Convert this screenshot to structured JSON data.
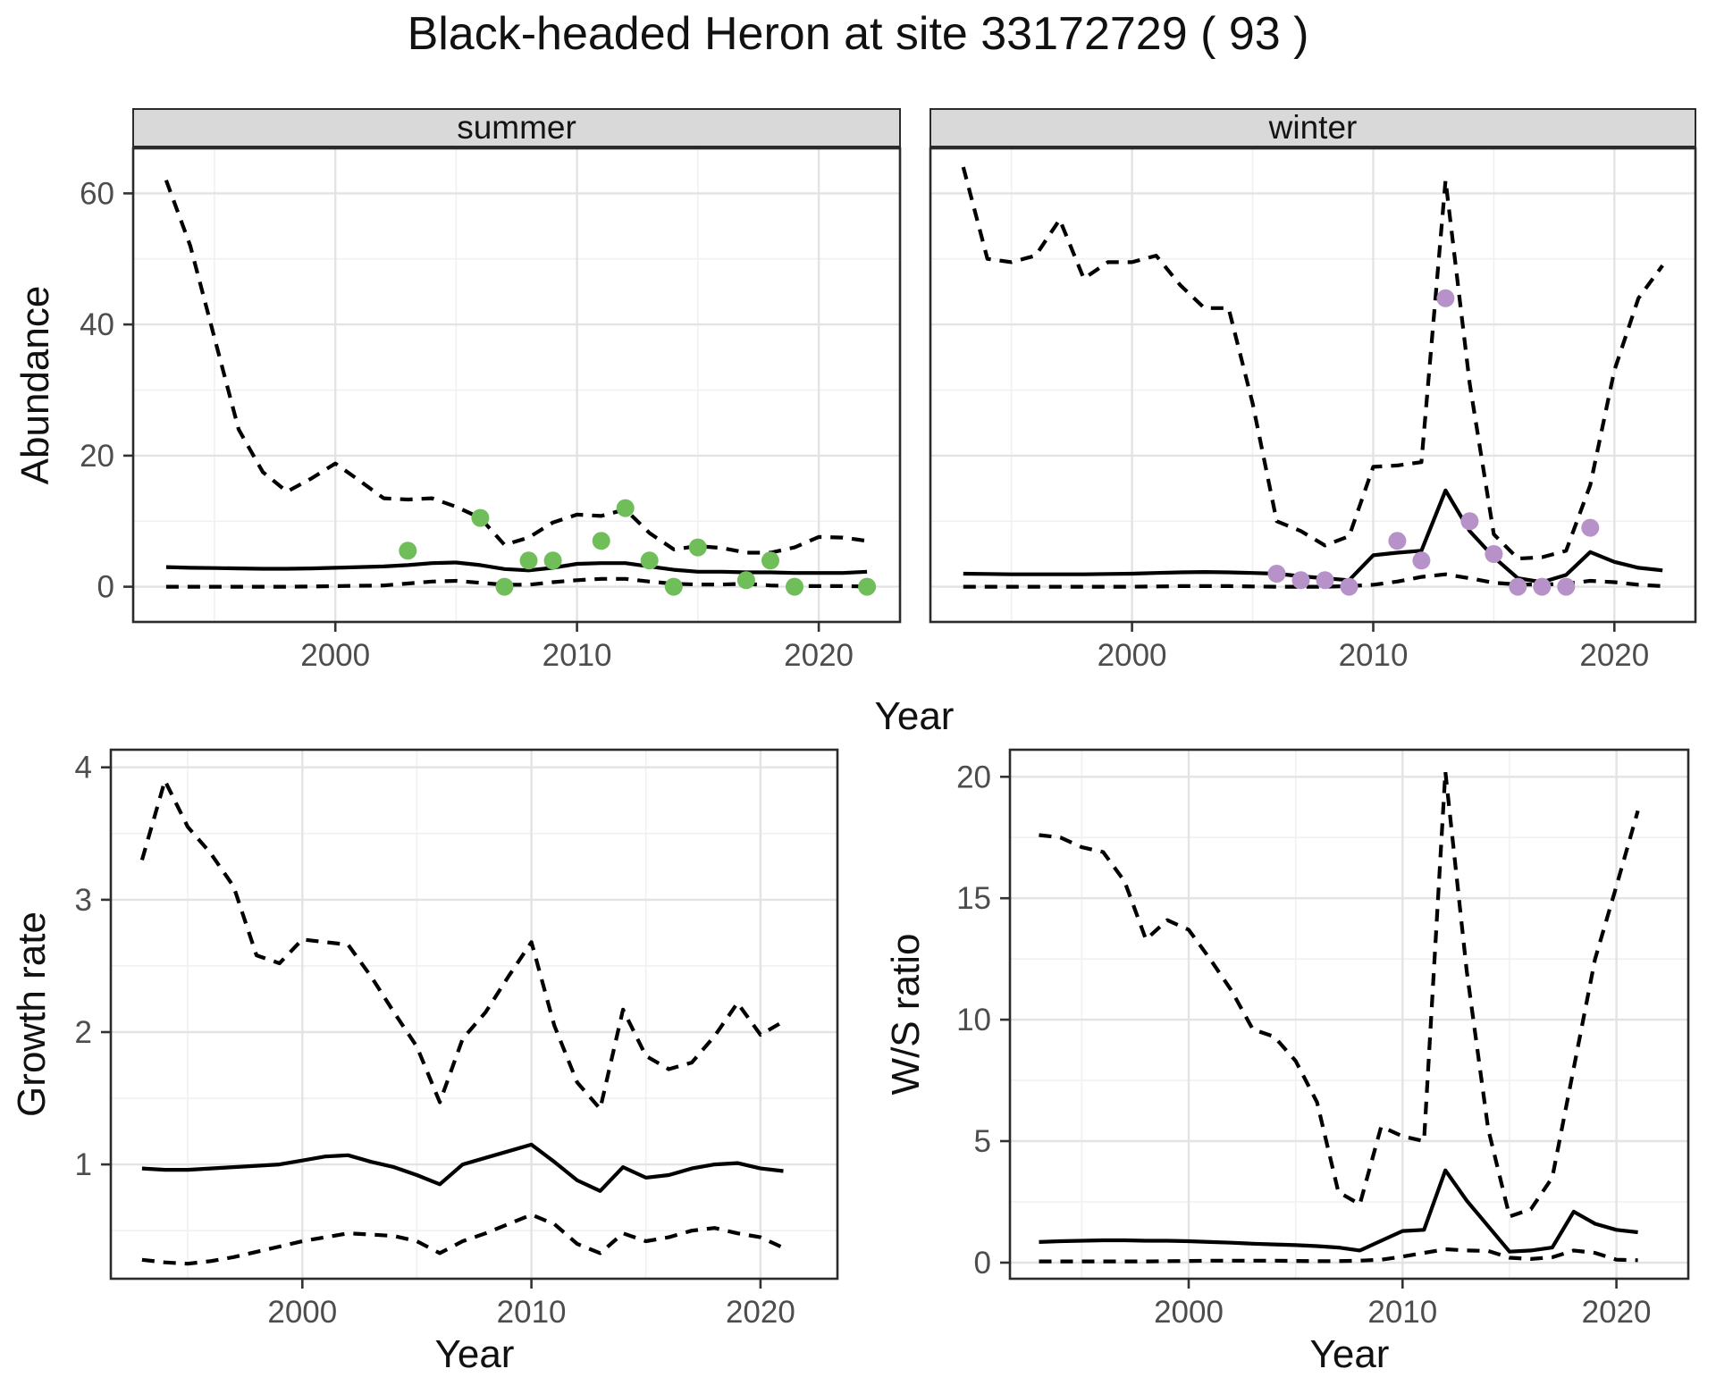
{
  "title": "Black-headed Heron at site 33172729 ( 93 )",
  "colors": {
    "summer_points": "#6FBE5A",
    "winter_points": "#B692C9",
    "line": "#000000",
    "strip_bg": "#D9D9D9",
    "grid_major": "#E3E3E3",
    "grid_minor": "#F0F0F0",
    "panel_border": "#2b2b2b",
    "tick_text": "#4D4D4D"
  },
  "chart_data": [
    {
      "id": "summer",
      "type": "line",
      "facet_label": "summer",
      "xlabel": "Year",
      "ylabel": "Abundance",
      "x_domain": [
        1991.6,
        2023.4
      ],
      "y_domain": [
        -5.5,
        67
      ],
      "x_ticks": [
        2000,
        2010,
        2020
      ],
      "x_tick_labels": [
        "2000",
        "2010",
        "2020"
      ],
      "x_minor": [
        1995,
        2005,
        2015
      ],
      "y_ticks": [
        0,
        20,
        40,
        60
      ],
      "y_tick_labels": [
        "0",
        "20",
        "40",
        "60"
      ],
      "y_minor": [
        10,
        30,
        50
      ],
      "show_y_axis": true,
      "grid": true,
      "legend": "none",
      "years": [
        1993,
        1994,
        1995,
        1996,
        1997,
        1998,
        1999,
        2000,
        2001,
        2002,
        2003,
        2004,
        2005,
        2006,
        2007,
        2008,
        2009,
        2010,
        2011,
        2012,
        2013,
        2014,
        2015,
        2016,
        2017,
        2018,
        2019,
        2020,
        2021,
        2022
      ],
      "series": [
        {
          "name": "upper 95% CI",
          "style": "dashed",
          "values": [
            62,
            52,
            38,
            24,
            17.5,
            14.5,
            16.5,
            18.8,
            16.2,
            13.5,
            13.3,
            13.5,
            12.2,
            10.5,
            6.4,
            7.5,
            9.8,
            11,
            10.8,
            11.8,
            8.2,
            5.7,
            6.2,
            5.9,
            5.2,
            5.2,
            6,
            7.6,
            7.5,
            7
          ]
        },
        {
          "name": "estimate",
          "style": "solid",
          "values": [
            3,
            2.9,
            2.85,
            2.8,
            2.75,
            2.75,
            2.8,
            2.9,
            3,
            3.1,
            3.3,
            3.6,
            3.7,
            3.3,
            2.7,
            2.5,
            2.9,
            3.5,
            3.6,
            3.6,
            3.1,
            2.6,
            2.3,
            2.3,
            2.2,
            2.2,
            2.1,
            2.1,
            2.1,
            2.3
          ]
        },
        {
          "name": "lower 95% CI",
          "style": "dashed",
          "values": [
            0,
            0,
            0,
            0,
            0,
            0,
            0.05,
            0.1,
            0.15,
            0.2,
            0.5,
            0.8,
            0.9,
            0.6,
            0.3,
            0.3,
            0.7,
            1,
            1.2,
            1.2,
            0.8,
            0.45,
            0.35,
            0.35,
            0.45,
            0.2,
            0.1,
            0.1,
            0.1,
            0.05
          ]
        }
      ],
      "points": {
        "name": "observed counts (summer)",
        "color": "#6FBE5A",
        "data": [
          [
            2003,
            5.5
          ],
          [
            2006,
            10.5
          ],
          [
            2007,
            0
          ],
          [
            2008,
            4
          ],
          [
            2009,
            4
          ],
          [
            2011,
            7
          ],
          [
            2012,
            12
          ],
          [
            2013,
            4
          ],
          [
            2014,
            0
          ],
          [
            2015,
            6
          ],
          [
            2017,
            1
          ],
          [
            2018,
            4
          ],
          [
            2019,
            0
          ],
          [
            2022,
            0
          ]
        ]
      }
    },
    {
      "id": "winter",
      "type": "line",
      "facet_label": "winter",
      "xlabel": "Year",
      "ylabel": "Abundance",
      "x_domain": [
        1991.6,
        2023.4
      ],
      "y_domain": [
        -5.5,
        67
      ],
      "x_ticks": [
        2000,
        2010,
        2020
      ],
      "x_tick_labels": [
        "2000",
        "2010",
        "2020"
      ],
      "x_minor": [
        1995,
        2005,
        2015
      ],
      "y_ticks": [
        0,
        20,
        40,
        60
      ],
      "y_tick_labels": [
        "0",
        "20",
        "40",
        "60"
      ],
      "y_minor": [
        10,
        30,
        50
      ],
      "show_y_axis": false,
      "grid": true,
      "legend": "none",
      "years": [
        1993,
        1994,
        1995,
        1996,
        1997,
        1998,
        1999,
        2000,
        2001,
        2002,
        2003,
        2004,
        2005,
        2006,
        2007,
        2008,
        2009,
        2010,
        2011,
        2012,
        2013,
        2014,
        2015,
        2016,
        2017,
        2018,
        2019,
        2020,
        2021,
        2022
      ],
      "series": [
        {
          "name": "upper 95% CI",
          "style": "dashed",
          "values": [
            64,
            50,
            49.5,
            50.5,
            56,
            47,
            49.5,
            49.5,
            50.5,
            46,
            42.5,
            42.5,
            28,
            10,
            8.5,
            6.3,
            7.7,
            18.3,
            18.5,
            19,
            62,
            31,
            8,
            4.3,
            4.5,
            5.5,
            15.5,
            33,
            44,
            49
          ]
        },
        {
          "name": "estimate",
          "style": "solid",
          "values": [
            2,
            1.95,
            1.9,
            1.9,
            1.9,
            1.9,
            1.95,
            2,
            2.1,
            2.2,
            2.25,
            2.2,
            2.1,
            2,
            1.6,
            1.3,
            1,
            4.8,
            5.2,
            5.5,
            14.7,
            8.5,
            4.5,
            1.3,
            0.7,
            1.8,
            5.3,
            3.8,
            2.9,
            2.5
          ]
        },
        {
          "name": "lower 95% CI",
          "style": "dashed",
          "values": [
            0,
            0,
            0,
            0,
            0,
            0,
            0,
            0,
            0.05,
            0.1,
            0.1,
            0.1,
            0.05,
            0,
            0,
            0,
            0.1,
            0.3,
            0.8,
            1.5,
            1.9,
            1.3,
            0.6,
            0.35,
            0.35,
            0.45,
            0.9,
            0.7,
            0.3,
            0.1
          ]
        }
      ],
      "points": {
        "name": "observed counts (winter)",
        "color": "#B692C9",
        "data": [
          [
            2006,
            2
          ],
          [
            2007,
            1
          ],
          [
            2008,
            1
          ],
          [
            2009,
            0
          ],
          [
            2011,
            7
          ],
          [
            2012,
            4
          ],
          [
            2013,
            44
          ],
          [
            2014,
            10
          ],
          [
            2015,
            5
          ],
          [
            2016,
            0
          ],
          [
            2017,
            0
          ],
          [
            2018,
            0
          ],
          [
            2019,
            9
          ]
        ]
      }
    },
    {
      "id": "growth",
      "type": "line",
      "facet_label": "",
      "xlabel": "Year",
      "ylabel": "Growth rate",
      "x_domain": [
        1991.6,
        2023.4
      ],
      "y_domain": [
        0.13,
        4.14
      ],
      "x_ticks": [
        2000,
        2010,
        2020
      ],
      "x_tick_labels": [
        "2000",
        "2010",
        "2020"
      ],
      "x_minor": [
        1995,
        2005,
        2015
      ],
      "y_ticks": [
        1,
        2,
        3,
        4
      ],
      "y_tick_labels": [
        "1",
        "2",
        "3",
        "4"
      ],
      "y_minor": [
        0.5,
        1.5,
        2.5,
        3.5
      ],
      "show_y_axis": true,
      "grid": true,
      "legend": "none",
      "years": [
        1993,
        1994,
        1995,
        1996,
        1997,
        1998,
        1999,
        2000,
        2001,
        2002,
        2003,
        2004,
        2005,
        2006,
        2007,
        2008,
        2009,
        2010,
        2011,
        2012,
        2013,
        2014,
        2015,
        2016,
        2017,
        2018,
        2019,
        2020,
        2021
      ],
      "series": [
        {
          "name": "upper 95% CI",
          "style": "dashed",
          "values": [
            3.3,
            3.9,
            3.55,
            3.35,
            3.1,
            2.58,
            2.52,
            2.7,
            2.68,
            2.66,
            2.42,
            2.15,
            1.89,
            1.47,
            1.95,
            2.15,
            2.42,
            2.68,
            2.05,
            1.62,
            1.42,
            2.17,
            1.82,
            1.72,
            1.77,
            1.97,
            2.22,
            1.98,
            2.08
          ]
        },
        {
          "name": "estimate",
          "style": "solid",
          "values": [
            0.97,
            0.96,
            0.96,
            0.97,
            0.98,
            0.99,
            1,
            1.03,
            1.06,
            1.07,
            1.02,
            0.98,
            0.92,
            0.85,
            1,
            1.05,
            1.1,
            1.15,
            1.02,
            0.88,
            0.8,
            0.98,
            0.9,
            0.92,
            0.97,
            1,
            1.01,
            0.97,
            0.95
          ]
        },
        {
          "name": "lower 95% CI",
          "style": "dashed",
          "values": [
            0.28,
            0.26,
            0.25,
            0.27,
            0.3,
            0.34,
            0.38,
            0.42,
            0.45,
            0.48,
            0.47,
            0.46,
            0.42,
            0.33,
            0.42,
            0.48,
            0.55,
            0.62,
            0.55,
            0.4,
            0.33,
            0.48,
            0.42,
            0.45,
            0.5,
            0.52,
            0.48,
            0.45,
            0.37
          ]
        }
      ],
      "points": null
    },
    {
      "id": "ws",
      "type": "line",
      "facet_label": "",
      "xlabel": "Year",
      "ylabel": "W/S ratio",
      "x_domain": [
        1991.6,
        2023.4
      ],
      "y_domain": [
        -0.7,
        21.15
      ],
      "x_ticks": [
        2000,
        2010,
        2020
      ],
      "x_tick_labels": [
        "2000",
        "2010",
        "2020"
      ],
      "x_minor": [
        1995,
        2005,
        2015
      ],
      "y_ticks": [
        0,
        5,
        10,
        15,
        20
      ],
      "y_tick_labels": [
        "0",
        "5",
        "10",
        "15",
        "20"
      ],
      "y_minor": [
        2.5,
        7.5,
        12.5,
        17.5
      ],
      "show_y_axis": true,
      "grid": true,
      "legend": "none",
      "years": [
        1993,
        1994,
        1995,
        1996,
        1997,
        1998,
        1999,
        2000,
        2001,
        2002,
        2003,
        2004,
        2005,
        2006,
        2007,
        2008,
        2009,
        2010,
        2011,
        2012,
        2013,
        2014,
        2015,
        2016,
        2017,
        2018,
        2019,
        2020,
        2021
      ],
      "series": [
        {
          "name": "upper 95% CI",
          "style": "dashed",
          "values": [
            17.6,
            17.5,
            17.1,
            16.9,
            15.7,
            13.3,
            14.1,
            13.7,
            12.5,
            11.2,
            9.6,
            9.3,
            8.3,
            6.6,
            2.9,
            2.4,
            5.6,
            5.2,
            5,
            20.2,
            12,
            5.5,
            1.9,
            2.2,
            3.5,
            8,
            12.5,
            15.5,
            18.6
          ]
        },
        {
          "name": "estimate",
          "style": "solid",
          "values": [
            0.85,
            0.88,
            0.9,
            0.92,
            0.92,
            0.9,
            0.9,
            0.88,
            0.85,
            0.82,
            0.78,
            0.75,
            0.72,
            0.68,
            0.62,
            0.5,
            0.9,
            1.3,
            1.35,
            3.8,
            2.55,
            1.5,
            0.45,
            0.5,
            0.62,
            2.1,
            1.6,
            1.35,
            1.25
          ]
        },
        {
          "name": "lower 95% CI",
          "style": "dashed",
          "values": [
            0.05,
            0.05,
            0.05,
            0.05,
            0.05,
            0.05,
            0.06,
            0.07,
            0.08,
            0.08,
            0.08,
            0.08,
            0.07,
            0.06,
            0.06,
            0.08,
            0.12,
            0.25,
            0.4,
            0.55,
            0.5,
            0.48,
            0.2,
            0.15,
            0.22,
            0.5,
            0.4,
            0.12,
            0.1
          ]
        }
      ],
      "points": null
    }
  ]
}
